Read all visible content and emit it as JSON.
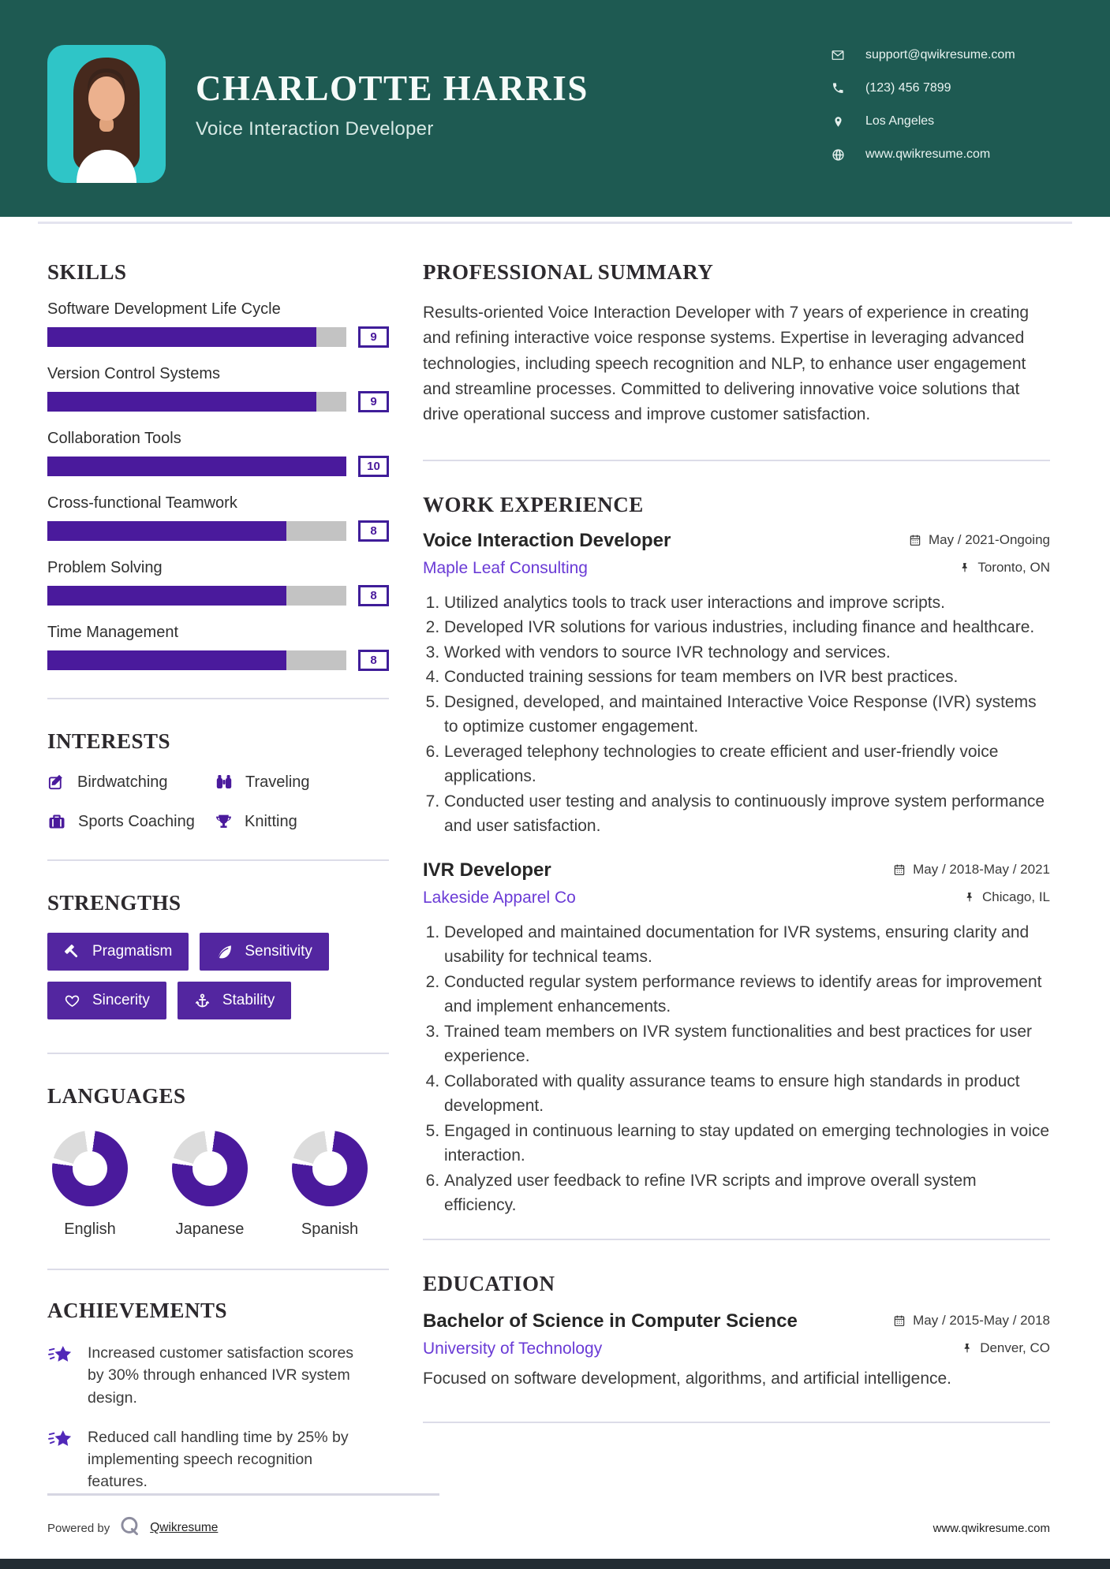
{
  "colors": {
    "header_bg": "#1E5A52",
    "photo_bg": "#2FC5C7",
    "accent_purple": "#4A1A9C",
    "button_purple": "#5326A0",
    "link_purple": "#6A3BD6",
    "bar_track": "#C3C3C3",
    "donut_track": "#DCDCDC",
    "divider": "#DCDCE8"
  },
  "header": {
    "name": "CHARLOTTE HARRIS",
    "title": "Voice Interaction Developer",
    "contacts": [
      {
        "icon": "envelope-icon",
        "text": "support@qwikresume.com"
      },
      {
        "icon": "phone-icon",
        "text": "(123) 456 7899"
      },
      {
        "icon": "location-icon",
        "text": "Los Angeles"
      },
      {
        "icon": "globe-icon",
        "text": "www.qwikresume.com"
      }
    ]
  },
  "skills": {
    "heading": "SKILLS",
    "max_rating": 10,
    "items": [
      {
        "label": "Software Development Life Cycle",
        "rating": 9
      },
      {
        "label": "Version Control Systems",
        "rating": 9
      },
      {
        "label": "Collaboration Tools",
        "rating": 10
      },
      {
        "label": "Cross-functional Teamwork",
        "rating": 8
      },
      {
        "label": "Problem Solving",
        "rating": 8
      },
      {
        "label": "Time Management",
        "rating": 8
      }
    ]
  },
  "interests": {
    "heading": "INTERESTS",
    "items": [
      {
        "icon": "edit-icon",
        "label": "Birdwatching"
      },
      {
        "icon": "binoculars-icon",
        "label": "Traveling"
      },
      {
        "icon": "briefcase-icon",
        "label": "Sports Coaching"
      },
      {
        "icon": "trophy-icon",
        "label": "Knitting"
      }
    ]
  },
  "strengths": {
    "heading": "STRENGTHS",
    "items": [
      {
        "icon": "gavel-icon",
        "label": "Pragmatism"
      },
      {
        "icon": "leaf-icon",
        "label": "Sensitivity"
      },
      {
        "icon": "heart-icon",
        "label": "Sincerity"
      },
      {
        "icon": "anchor-icon",
        "label": "Stability"
      }
    ]
  },
  "languages": {
    "heading": "LANGUAGES",
    "items": [
      {
        "name": "English",
        "percent": 75
      },
      {
        "name": "Japanese",
        "percent": 75
      },
      {
        "name": "Spanish",
        "percent": 75
      }
    ]
  },
  "achievements": {
    "heading": "ACHIEVEMENTS",
    "items": [
      {
        "icon": "shooting-star-icon",
        "text": "Increased customer satisfaction scores by 30% through enhanced IVR system design."
      },
      {
        "icon": "shooting-star-icon",
        "text": "Reduced call handling time by 25% by implementing speech recognition features."
      }
    ]
  },
  "summary": {
    "heading": "PROFESSIONAL SUMMARY",
    "text": "Results-oriented Voice Interaction Developer with 7 years of experience in creating and refining interactive voice response systems. Expertise in leveraging advanced technologies, including speech recognition and NLP, to enhance user engagement and streamline processes. Committed to delivering innovative voice solutions that drive operational success and improve customer satisfaction."
  },
  "experience": {
    "heading": "WORK EXPERIENCE",
    "jobs": [
      {
        "title": "Voice Interaction Developer",
        "company": "Maple Leaf Consulting",
        "dates": "May / 2021-Ongoing",
        "location": "Toronto, ON",
        "bullets": [
          "Utilized analytics tools to track user interactions and improve scripts.",
          "Developed IVR solutions for various industries, including finance and healthcare.",
          "Worked with vendors to source IVR technology and services.",
          "Conducted training sessions for team members on IVR best practices.",
          "Designed, developed, and maintained Interactive Voice Response (IVR) systems to optimize customer engagement.",
          "Leveraged telephony technologies to create efficient and user-friendly voice applications.",
          "Conducted user testing and analysis to continuously improve system performance and user satisfaction."
        ]
      },
      {
        "title": "IVR Developer",
        "company": "Lakeside Apparel Co",
        "dates": "May / 2018-May / 2021",
        "location": "Chicago, IL",
        "bullets": [
          "Developed and maintained documentation for IVR systems, ensuring clarity and usability for technical teams.",
          "Conducted regular system performance reviews to identify areas for improvement and implement enhancements.",
          "Trained team members on IVR system functionalities and best practices for user experience.",
          "Collaborated with quality assurance teams to ensure high standards in product development.",
          "Engaged in continuous learning to stay updated on emerging technologies in voice interaction.",
          "Analyzed user feedback to refine IVR scripts and improve overall system efficiency."
        ]
      }
    ]
  },
  "education": {
    "heading": "EDUCATION",
    "degree": "Bachelor of Science in Computer Science",
    "school": "University of Technology",
    "dates": "May / 2015-May / 2018",
    "location": "Denver, CO",
    "description": "Focused on software development, algorithms, and artificial intelligence."
  },
  "footer": {
    "powered_by": "Powered by",
    "brand": "Qwikresume",
    "website": "www.qwikresume.com"
  }
}
